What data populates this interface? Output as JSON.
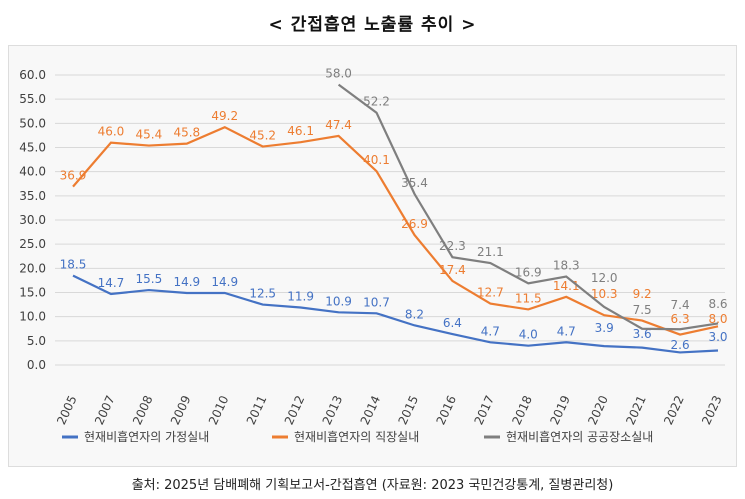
{
  "title": "< 간접흡연 노출률 추이 >",
  "source": "출처: 2025년 담배폐해 기획보고서-간접흡연 (자료원: 2023 국민건강통계, 질병관리청)",
  "chart_data": {
    "type": "line",
    "title": "< 간접흡연 노출률 추이 >",
    "categories": [
      "2005",
      "2007",
      "2008",
      "2009",
      "2010",
      "2011",
      "2012",
      "2013",
      "2014",
      "2015",
      "2016",
      "2017",
      "2018",
      "2019",
      "2020",
      "2021",
      "2022",
      "2023"
    ],
    "ylim": [
      0,
      60
    ],
    "yticks": [
      "0.0",
      "5.0",
      "10.0",
      "15.0",
      "20.0",
      "25.0",
      "30.0",
      "35.0",
      "40.0",
      "45.0",
      "50.0",
      "55.0",
      "60.0"
    ],
    "grid": true,
    "legend_position": "bottom",
    "series": [
      {
        "name": "현재비흡연자의 가정실내",
        "color": "#4472c4",
        "values": [
          18.5,
          14.7,
          15.5,
          14.9,
          14.9,
          12.5,
          11.9,
          10.9,
          10.7,
          8.2,
          6.4,
          4.7,
          4.0,
          4.7,
          3.9,
          3.6,
          2.6,
          3.0
        ]
      },
      {
        "name": "현재비흡연자의 직장실내",
        "color": "#ed7d31",
        "values": [
          36.9,
          46.0,
          45.4,
          45.8,
          49.2,
          45.2,
          46.1,
          47.4,
          40.1,
          26.9,
          17.4,
          12.7,
          11.5,
          14.1,
          10.3,
          9.2,
          6.3,
          8.0
        ]
      },
      {
        "name": "현재비흡연자의 공공장소실내",
        "color": "#7f7f7f",
        "values": [
          null,
          null,
          null,
          null,
          null,
          null,
          null,
          58.0,
          52.2,
          35.4,
          22.3,
          21.1,
          16.9,
          18.3,
          12.0,
          7.5,
          7.4,
          8.6
        ]
      }
    ]
  }
}
